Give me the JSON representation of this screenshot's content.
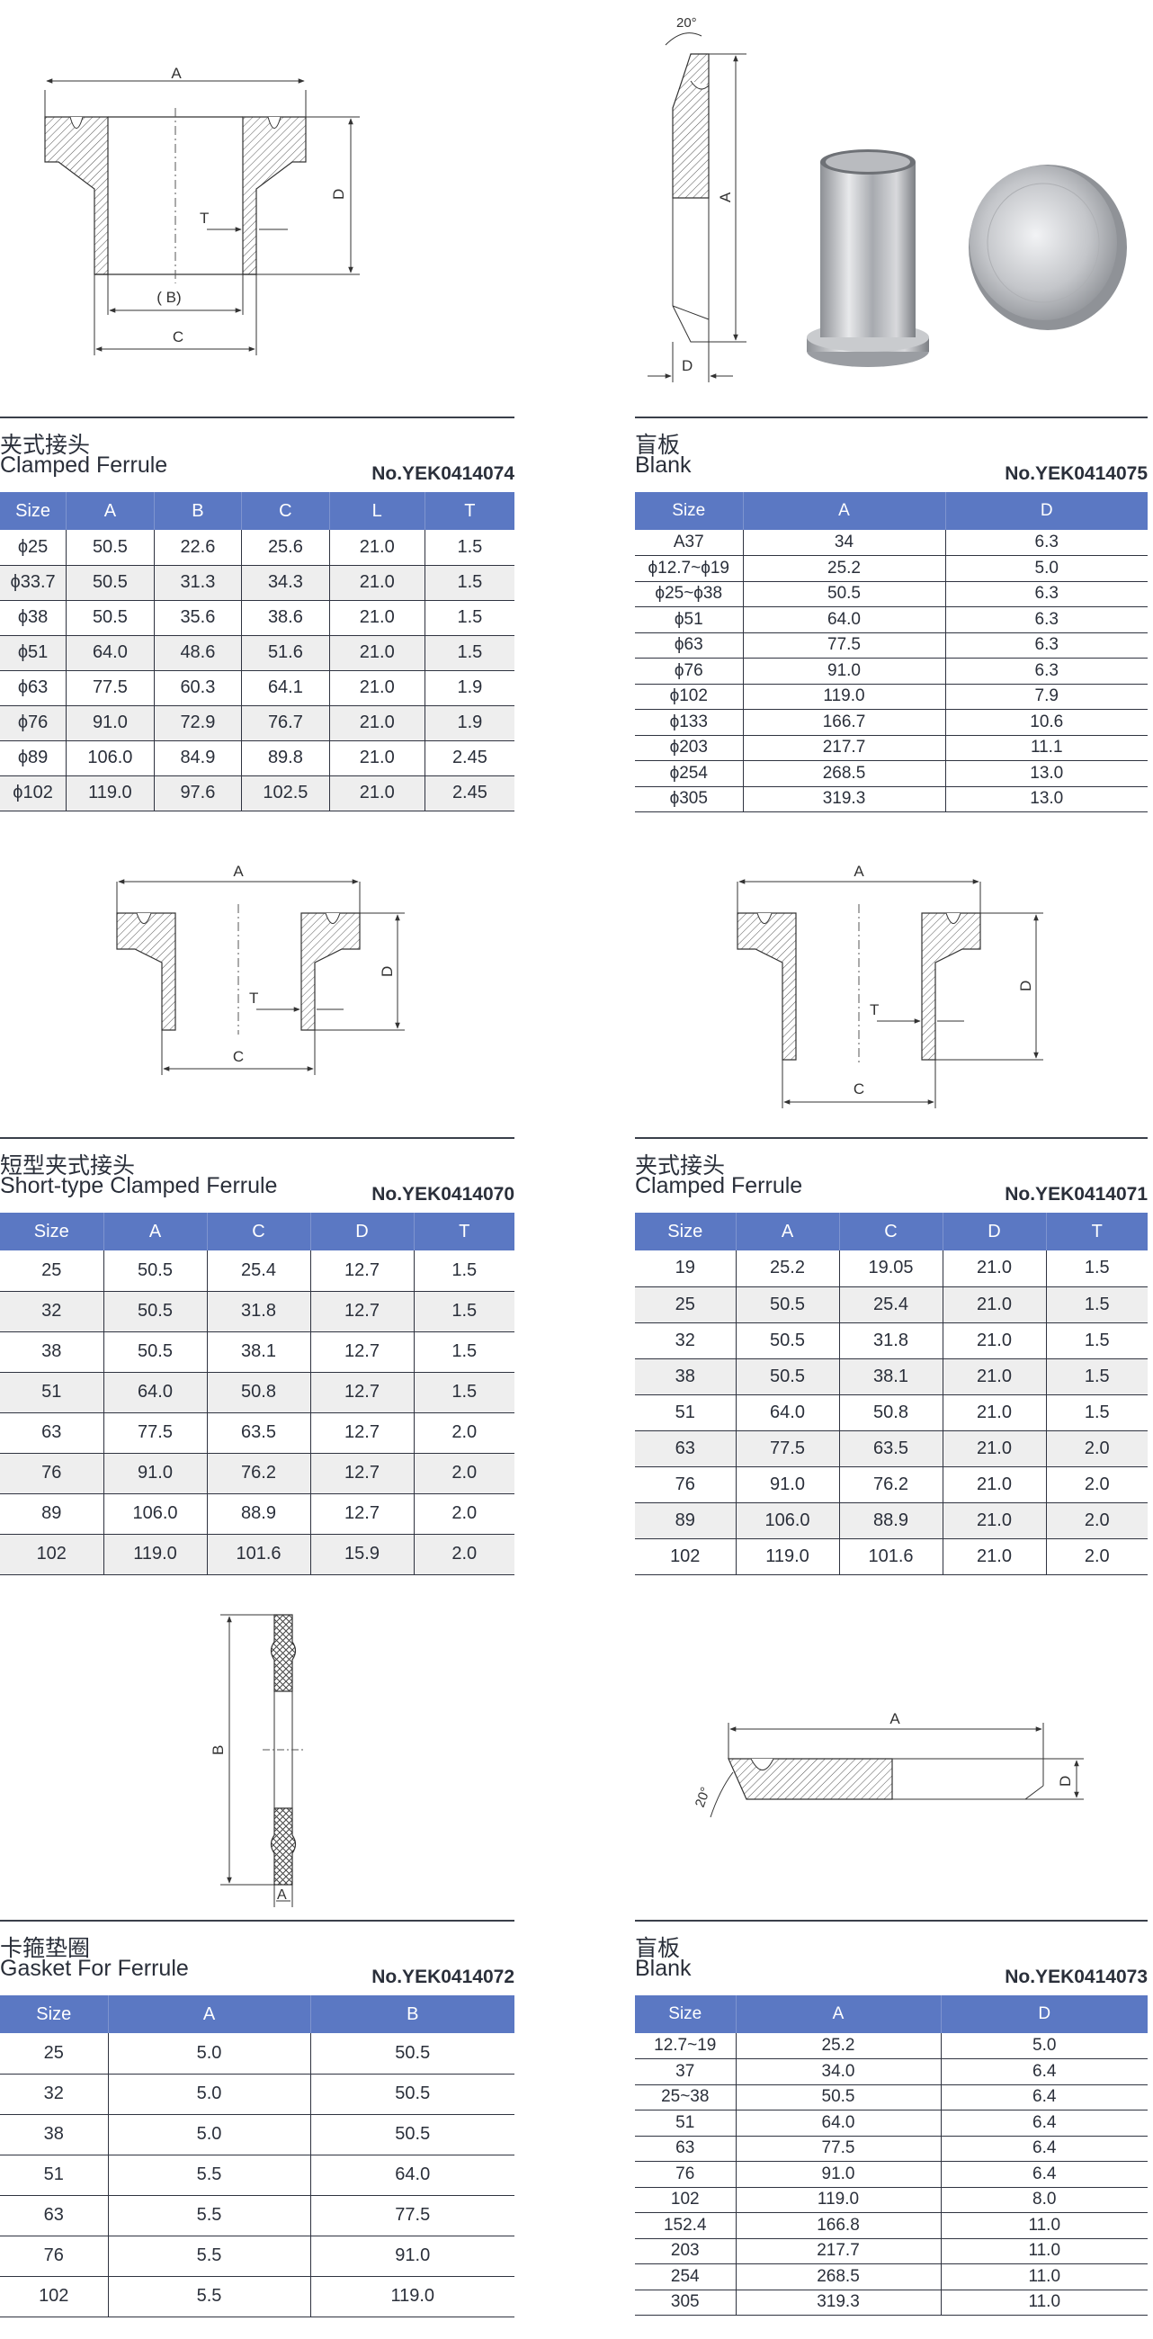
{
  "sections": [
    {
      "title_cn": "夹式接头",
      "title_en": "Clamped Ferrule",
      "code": "No.YEK0414074",
      "columns": [
        "Size",
        "A",
        "B",
        "C",
        "L",
        "T"
      ],
      "rows": [
        [
          "ϕ25",
          "50.5",
          "22.6",
          "25.6",
          "21.0",
          "1.5"
        ],
        [
          "ϕ33.7",
          "50.5",
          "31.3",
          "34.3",
          "21.0",
          "1.5"
        ],
        [
          "ϕ38",
          "50.5",
          "35.6",
          "38.6",
          "21.0",
          "1.5"
        ],
        [
          "ϕ51",
          "64.0",
          "48.6",
          "51.6",
          "21.0",
          "1.5"
        ],
        [
          "ϕ63",
          "77.5",
          "60.3",
          "64.1",
          "21.0",
          "1.9"
        ],
        [
          "ϕ76",
          "91.0",
          "72.9",
          "76.7",
          "21.0",
          "1.9"
        ],
        [
          "ϕ89",
          "106.0",
          "84.9",
          "89.8",
          "21.0",
          "2.45"
        ],
        [
          "ϕ102",
          "119.0",
          "97.6",
          "102.5",
          "21.0",
          "2.45"
        ]
      ]
    },
    {
      "title_cn": "盲板",
      "title_en": "Blank",
      "code": "No.YEK0414075",
      "columns": [
        "Size",
        "A",
        "D"
      ],
      "rows": [
        [
          "A37",
          "34",
          "6.3"
        ],
        [
          "ϕ12.7~ϕ19",
          "25.2",
          "5.0"
        ],
        [
          "ϕ25~ϕ38",
          "50.5",
          "6.3"
        ],
        [
          "ϕ51",
          "64.0",
          "6.3"
        ],
        [
          "ϕ63",
          "77.5",
          "6.3"
        ],
        [
          "ϕ76",
          "91.0",
          "6.3"
        ],
        [
          "ϕ102",
          "119.0",
          "7.9"
        ],
        [
          "ϕ133",
          "166.7",
          "10.6"
        ],
        [
          "ϕ203",
          "217.7",
          "11.1"
        ],
        [
          "ϕ254",
          "268.5",
          "13.0"
        ],
        [
          "ϕ305",
          "319.3",
          "13.0"
        ]
      ]
    },
    {
      "title_cn": "短型夹式接头",
      "title_en": "Short-type Clamped Ferrule",
      "code": "No.YEK0414070",
      "columns": [
        "Size",
        "A",
        "C",
        "D",
        "T"
      ],
      "rows": [
        [
          "25",
          "50.5",
          "25.4",
          "12.7",
          "1.5"
        ],
        [
          "32",
          "50.5",
          "31.8",
          "12.7",
          "1.5"
        ],
        [
          "38",
          "50.5",
          "38.1",
          "12.7",
          "1.5"
        ],
        [
          "51",
          "64.0",
          "50.8",
          "12.7",
          "1.5"
        ],
        [
          "63",
          "77.5",
          "63.5",
          "12.7",
          "2.0"
        ],
        [
          "76",
          "91.0",
          "76.2",
          "12.7",
          "2.0"
        ],
        [
          "89",
          "106.0",
          "88.9",
          "12.7",
          "2.0"
        ],
        [
          "102",
          "119.0",
          "101.6",
          "15.9",
          "2.0"
        ]
      ]
    },
    {
      "title_cn": "夹式接头",
      "title_en": "Clamped Ferrule",
      "code": "No.YEK0414071",
      "columns": [
        "Size",
        "A",
        "C",
        "D",
        "T"
      ],
      "rows": [
        [
          "19",
          "25.2",
          "19.05",
          "21.0",
          "1.5"
        ],
        [
          "25",
          "50.5",
          "25.4",
          "21.0",
          "1.5"
        ],
        [
          "32",
          "50.5",
          "31.8",
          "21.0",
          "1.5"
        ],
        [
          "38",
          "50.5",
          "38.1",
          "21.0",
          "1.5"
        ],
        [
          "51",
          "64.0",
          "50.8",
          "21.0",
          "1.5"
        ],
        [
          "63",
          "77.5",
          "63.5",
          "21.0",
          "2.0"
        ],
        [
          "76",
          "91.0",
          "76.2",
          "21.0",
          "2.0"
        ],
        [
          "89",
          "106.0",
          "88.9",
          "21.0",
          "2.0"
        ],
        [
          "102",
          "119.0",
          "101.6",
          "21.0",
          "2.0"
        ]
      ]
    },
    {
      "title_cn": "卡箍垫圈",
      "title_en": "Gasket For Ferrule",
      "code": "No.YEK0414072",
      "columns": [
        "Size",
        "A",
        "B"
      ],
      "rows": [
        [
          "25",
          "5.0",
          "50.5"
        ],
        [
          "32",
          "5.0",
          "50.5"
        ],
        [
          "38",
          "5.0",
          "50.5"
        ],
        [
          "51",
          "5.5",
          "64.0"
        ],
        [
          "63",
          "5.5",
          "77.5"
        ],
        [
          "76",
          "5.5",
          "91.0"
        ],
        [
          "102",
          "5.5",
          "119.0"
        ]
      ]
    },
    {
      "title_cn": "盲板",
      "title_en": "Blank",
      "code": "No.YEK0414073",
      "columns": [
        "Size",
        "A",
        "D"
      ],
      "rows": [
        [
          "12.7~19",
          "25.2",
          "5.0"
        ],
        [
          "37",
          "34.0",
          "6.4"
        ],
        [
          "25~38",
          "50.5",
          "6.4"
        ],
        [
          "51",
          "64.0",
          "6.4"
        ],
        [
          "63",
          "77.5",
          "6.4"
        ],
        [
          "76",
          "91.0",
          "6.4"
        ],
        [
          "102",
          "119.0",
          "8.0"
        ],
        [
          "152.4",
          "166.8",
          "11.0"
        ],
        [
          "203",
          "217.7",
          "11.0"
        ],
        [
          "254",
          "268.5",
          "11.0"
        ],
        [
          "305",
          "319.3",
          "11.0"
        ]
      ]
    }
  ],
  "drawing_labels": {
    "ferrule1": {
      "a": "A",
      "b": "( B)",
      "c": "C",
      "d": "D",
      "t": "T"
    },
    "blank1": {
      "angle": "20°",
      "a": "A",
      "d": "D"
    },
    "short": {
      "a": "A",
      "c": "C",
      "d": "D",
      "t": "T"
    },
    "ferrule2": {
      "a": "A",
      "c": "C",
      "d": "D",
      "t": "T"
    },
    "gasket": {
      "a": "A",
      "b": "B"
    },
    "blank2": {
      "angle": "20°",
      "a": "A",
      "d": "D"
    }
  },
  "colors": {
    "header_bg": "#5b78c3",
    "stripe": "#eeeeee",
    "line": "#2f3340"
  }
}
